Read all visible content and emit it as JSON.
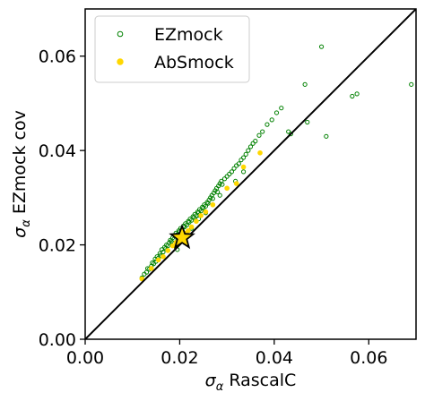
{
  "chart_data": {
    "type": "scatter",
    "xlabel": "σ_α RascalC",
    "ylabel": "σ_α EZmock cov",
    "xlim": [
      0.0,
      0.07
    ],
    "ylim": [
      0.0,
      0.07
    ],
    "xticks": [
      "0.00",
      "0.02",
      "0.04",
      "0.06"
    ],
    "yticks": [
      "0.00",
      "0.02",
      "0.04",
      "0.06"
    ],
    "diagonal": {
      "from": [
        0.0,
        0.0
      ],
      "to": [
        0.07,
        0.07
      ],
      "color": "#000000"
    },
    "legend": {
      "position": "top-left",
      "entries": [
        {
          "label": "EZmock",
          "marker": "open-circle",
          "color": "#008000"
        },
        {
          "label": "AbSmock",
          "marker": "filled-circle",
          "color": "#ffd700"
        }
      ]
    },
    "series": [
      {
        "name": "EZmock",
        "color": "#008000",
        "marker": "open-circle",
        "points": [
          [
            0.012,
            0.013
          ],
          [
            0.0125,
            0.0138
          ],
          [
            0.013,
            0.0142
          ],
          [
            0.0132,
            0.015
          ],
          [
            0.0135,
            0.0148
          ],
          [
            0.014,
            0.0155
          ],
          [
            0.0142,
            0.0162
          ],
          [
            0.0145,
            0.016
          ],
          [
            0.0148,
            0.017
          ],
          [
            0.015,
            0.0165
          ],
          [
            0.0152,
            0.0175
          ],
          [
            0.0155,
            0.0172
          ],
          [
            0.0158,
            0.0182
          ],
          [
            0.016,
            0.0178
          ],
          [
            0.0162,
            0.019
          ],
          [
            0.0165,
            0.0185
          ],
          [
            0.0168,
            0.0195
          ],
          [
            0.017,
            0.0192
          ],
          [
            0.0172,
            0.02
          ],
          [
            0.0175,
            0.0198
          ],
          [
            0.0178,
            0.0205
          ],
          [
            0.018,
            0.021
          ],
          [
            0.0182,
            0.0207
          ],
          [
            0.0185,
            0.0215
          ],
          [
            0.0188,
            0.0212
          ],
          [
            0.019,
            0.022
          ],
          [
            0.0192,
            0.0225
          ],
          [
            0.0195,
            0.0222
          ],
          [
            0.0198,
            0.023
          ],
          [
            0.02,
            0.0228
          ],
          [
            0.0202,
            0.0235
          ],
          [
            0.0205,
            0.0232
          ],
          [
            0.0208,
            0.024
          ],
          [
            0.021,
            0.0238
          ],
          [
            0.0212,
            0.0245
          ],
          [
            0.0215,
            0.0242
          ],
          [
            0.0218,
            0.025
          ],
          [
            0.022,
            0.0248
          ],
          [
            0.0222,
            0.0255
          ],
          [
            0.0225,
            0.0252
          ],
          [
            0.0228,
            0.026
          ],
          [
            0.023,
            0.0258
          ],
          [
            0.0232,
            0.0265
          ],
          [
            0.0235,
            0.0262
          ],
          [
            0.0238,
            0.027
          ],
          [
            0.024,
            0.0268
          ],
          [
            0.0242,
            0.0275
          ],
          [
            0.0245,
            0.0272
          ],
          [
            0.0248,
            0.028
          ],
          [
            0.025,
            0.0278
          ],
          [
            0.0252,
            0.0285
          ],
          [
            0.0255,
            0.0282
          ],
          [
            0.0258,
            0.029
          ],
          [
            0.026,
            0.0288
          ],
          [
            0.0262,
            0.0295
          ],
          [
            0.0265,
            0.03
          ],
          [
            0.0268,
            0.0305
          ],
          [
            0.027,
            0.0298
          ],
          [
            0.0272,
            0.031
          ],
          [
            0.0275,
            0.0315
          ],
          [
            0.0278,
            0.032
          ],
          [
            0.028,
            0.0312
          ],
          [
            0.0282,
            0.0325
          ],
          [
            0.0285,
            0.033
          ],
          [
            0.0288,
            0.0335
          ],
          [
            0.029,
            0.0328
          ],
          [
            0.0295,
            0.034
          ],
          [
            0.03,
            0.0345
          ],
          [
            0.0305,
            0.035
          ],
          [
            0.031,
            0.0355
          ],
          [
            0.0315,
            0.0362
          ],
          [
            0.032,
            0.0368
          ],
          [
            0.0325,
            0.0372
          ],
          [
            0.033,
            0.038
          ],
          [
            0.0335,
            0.0385
          ],
          [
            0.034,
            0.0392
          ],
          [
            0.0345,
            0.04
          ],
          [
            0.035,
            0.0408
          ],
          [
            0.0355,
            0.0415
          ],
          [
            0.036,
            0.042
          ],
          [
            0.0368,
            0.0432
          ],
          [
            0.0375,
            0.044
          ],
          [
            0.0385,
            0.0455
          ],
          [
            0.0395,
            0.0465
          ],
          [
            0.0405,
            0.048
          ],
          [
            0.0415,
            0.049
          ],
          [
            0.043,
            0.044
          ],
          [
            0.0435,
            0.0435
          ],
          [
            0.0465,
            0.054
          ],
          [
            0.047,
            0.046
          ],
          [
            0.05,
            0.062
          ],
          [
            0.051,
            0.043
          ],
          [
            0.0565,
            0.0515
          ],
          [
            0.0575,
            0.052
          ],
          [
            0.069,
            0.054
          ],
          [
            0.021,
            0.0205
          ],
          [
            0.0195,
            0.019
          ],
          [
            0.0225,
            0.0235
          ],
          [
            0.024,
            0.0255
          ],
          [
            0.0255,
            0.0268
          ],
          [
            0.027,
            0.0285
          ],
          [
            0.0285,
            0.0305
          ],
          [
            0.03,
            0.032
          ],
          [
            0.0318,
            0.0335
          ],
          [
            0.0335,
            0.0355
          ]
        ]
      },
      {
        "name": "AbSmock",
        "color": "#ffd700",
        "marker": "filled-circle",
        "points": [
          [
            0.012,
            0.0128
          ],
          [
            0.014,
            0.015
          ],
          [
            0.0155,
            0.0168
          ],
          [
            0.0165,
            0.0175
          ],
          [
            0.0175,
            0.0188
          ],
          [
            0.0185,
            0.0198
          ],
          [
            0.0192,
            0.0205
          ],
          [
            0.02,
            0.0212
          ],
          [
            0.0205,
            0.0215
          ],
          [
            0.021,
            0.0225
          ],
          [
            0.0218,
            0.023
          ],
          [
            0.0225,
            0.0238
          ],
          [
            0.0235,
            0.025
          ],
          [
            0.0245,
            0.0262
          ],
          [
            0.0255,
            0.027
          ],
          [
            0.027,
            0.0285
          ],
          [
            0.03,
            0.032
          ],
          [
            0.032,
            0.033
          ],
          [
            0.0335,
            0.0365
          ],
          [
            0.037,
            0.0395
          ]
        ]
      }
    ],
    "highlight": {
      "marker": "star",
      "x": 0.0205,
      "y": 0.0215,
      "fill": "#ffd700",
      "stroke": "#000000"
    }
  }
}
